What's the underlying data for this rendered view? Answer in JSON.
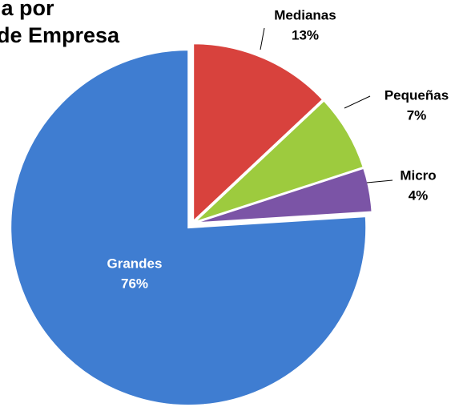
{
  "chart_data": {
    "type": "pie",
    "title": [
      "ia por",
      "de Empresa"
    ],
    "categories": [
      "Medianas",
      "Pequeñas",
      "Micro",
      "Grandes"
    ],
    "values": [
      13,
      7,
      4,
      76
    ],
    "value_labels": [
      "13%",
      "7%",
      "4%",
      "76%"
    ],
    "colors": [
      "#d8423d",
      "#9dcb3e",
      "#7b54a6",
      "#3f7dd1"
    ]
  }
}
